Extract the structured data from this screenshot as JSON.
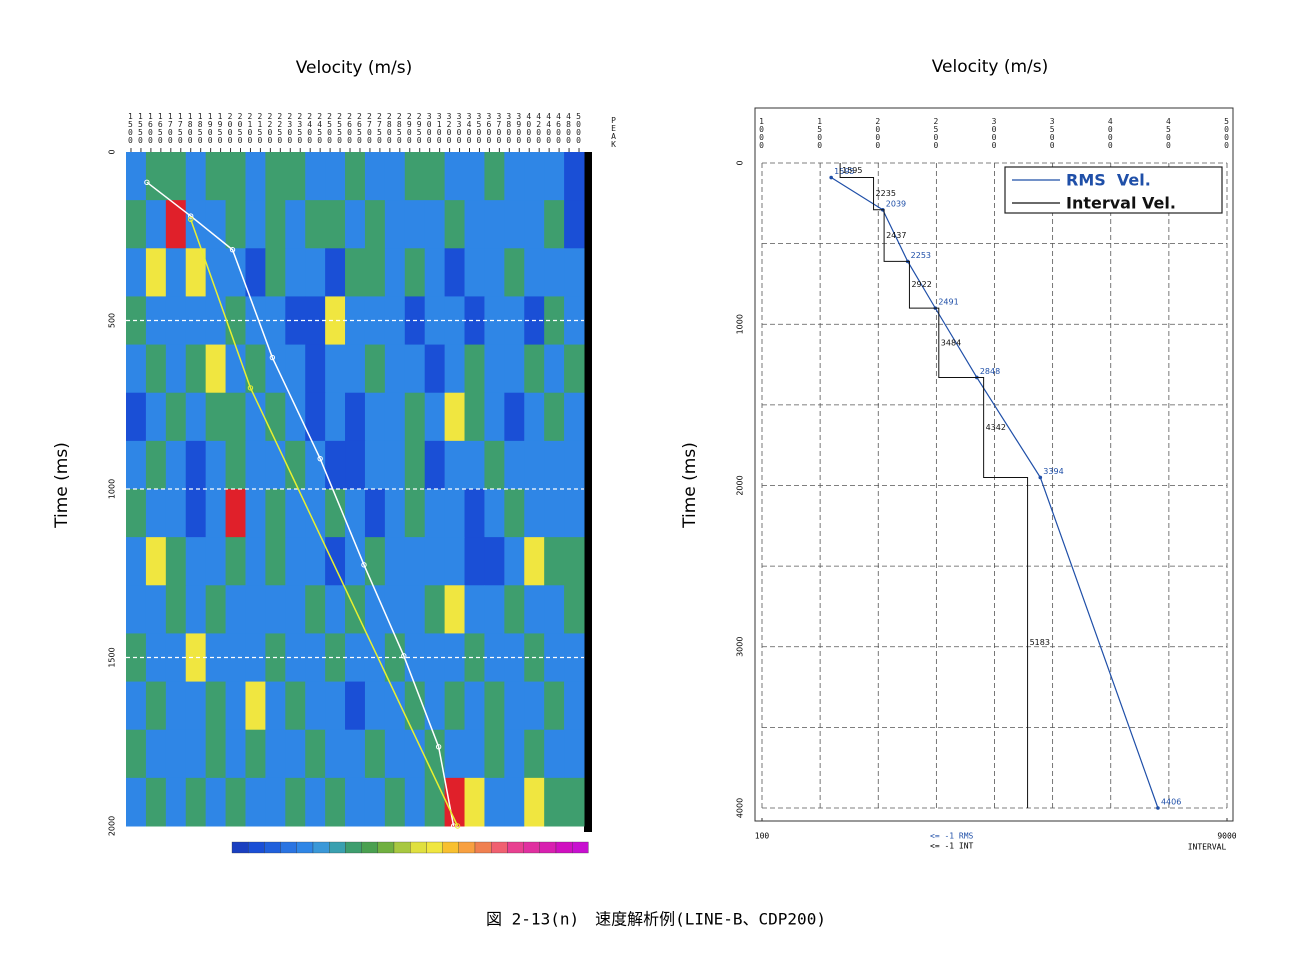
{
  "chart_data": [
    {
      "type": "heatmap",
      "title": "Velocity (m/s)",
      "ylabel": "Time (ms)",
      "peak_label": "PEAK",
      "xlim": [
        1500,
        5000
      ],
      "xticks": [
        1500,
        1550,
        1600,
        1650,
        1700,
        1750,
        1800,
        1850,
        1900,
        1950,
        2000,
        2050,
        2100,
        2150,
        2200,
        2250,
        2300,
        2350,
        2400,
        2450,
        2500,
        2550,
        2600,
        2650,
        2700,
        2750,
        2800,
        2850,
        2900,
        2950,
        3000,
        3100,
        3200,
        3300,
        3400,
        3500,
        3600,
        3700,
        3800,
        3900,
        4000,
        4200,
        4400,
        4600,
        4800,
        5000
      ],
      "ylim": [
        0,
        2000
      ],
      "yticks": [
        0,
        500,
        1000,
        1500,
        2000
      ],
      "grid": true,
      "colors": [
        "#1a4fd6",
        "#2f86e6",
        "#3e9e6e",
        "#f0e640",
        "#e0202a"
      ],
      "values": [
        [
          1,
          2,
          2,
          1,
          2,
          2,
          1,
          2,
          2,
          1,
          1,
          2,
          1,
          1,
          2,
          2,
          1,
          1,
          2,
          1,
          1,
          1,
          0
        ],
        [
          2,
          1,
          4,
          1,
          1,
          2,
          1,
          2,
          1,
          2,
          2,
          1,
          2,
          1,
          1,
          1,
          2,
          1,
          1,
          1,
          1,
          2,
          0
        ],
        [
          1,
          3,
          1,
          3,
          1,
          1,
          0,
          2,
          1,
          1,
          0,
          2,
          2,
          1,
          2,
          1,
          0,
          1,
          1,
          2,
          1,
          1,
          1
        ],
        [
          2,
          1,
          1,
          1,
          1,
          2,
          1,
          1,
          0,
          0,
          3,
          1,
          1,
          1,
          0,
          1,
          1,
          0,
          1,
          1,
          0,
          2,
          1
        ],
        [
          1,
          2,
          1,
          2,
          3,
          1,
          2,
          1,
          1,
          0,
          1,
          1,
          2,
          1,
          1,
          0,
          1,
          2,
          1,
          1,
          2,
          1,
          2
        ],
        [
          0,
          1,
          2,
          1,
          2,
          2,
          1,
          2,
          1,
          0,
          1,
          0,
          1,
          1,
          2,
          1,
          3,
          2,
          1,
          0,
          1,
          2,
          1
        ],
        [
          1,
          2,
          1,
          0,
          1,
          2,
          1,
          1,
          2,
          1,
          0,
          0,
          1,
          1,
          2,
          0,
          1,
          1,
          2,
          1,
          1,
          1,
          1
        ],
        [
          2,
          1,
          1,
          0,
          1,
          4,
          1,
          2,
          1,
          1,
          2,
          1,
          0,
          1,
          2,
          1,
          1,
          0,
          1,
          2,
          1,
          1,
          1
        ],
        [
          1,
          3,
          2,
          1,
          1,
          2,
          1,
          2,
          1,
          1,
          0,
          1,
          2,
          1,
          1,
          1,
          1,
          0,
          0,
          1,
          3,
          2,
          2
        ],
        [
          1,
          1,
          2,
          1,
          2,
          1,
          1,
          1,
          1,
          2,
          1,
          2,
          1,
          1,
          1,
          2,
          3,
          1,
          1,
          2,
          1,
          1,
          2
        ],
        [
          2,
          1,
          1,
          3,
          1,
          1,
          1,
          2,
          1,
          1,
          2,
          1,
          1,
          2,
          1,
          1,
          1,
          2,
          1,
          1,
          2,
          1,
          1
        ],
        [
          1,
          2,
          1,
          1,
          2,
          1,
          3,
          1,
          2,
          1,
          1,
          0,
          1,
          1,
          2,
          1,
          2,
          1,
          2,
          1,
          1,
          2,
          1
        ],
        [
          2,
          1,
          1,
          1,
          2,
          1,
          2,
          1,
          1,
          2,
          1,
          1,
          2,
          1,
          1,
          2,
          1,
          1,
          2,
          1,
          2,
          1,
          1
        ],
        [
          1,
          2,
          1,
          2,
          1,
          2,
          1,
          1,
          2,
          1,
          2,
          1,
          1,
          2,
          1,
          2,
          4,
          3,
          1,
          1,
          3,
          2,
          2
        ]
      ],
      "series": [
        {
          "color": "#ffffff",
          "x": [
            1580,
            1800,
            2010,
            2210,
            2450,
            2670,
            2870,
            3090,
            3240
          ],
          "y": [
            90,
            190,
            290,
            610,
            910,
            1225,
            1495,
            1765,
            2000
          ]
        },
        {
          "color": "#e8f030",
          "x": [
            1800,
            2100,
            3280
          ],
          "y": [
            200,
            700,
            2000
          ]
        }
      ]
    },
    {
      "type": "line",
      "title": "Velocity (m/s)",
      "ylabel": "Time (ms)",
      "xlim": [
        1000,
        5000
      ],
      "xticks": [
        1000,
        1500,
        2000,
        2500,
        3000,
        3500,
        4000,
        4500,
        5000
      ],
      "ylim": [
        0,
        4000
      ],
      "yticks": [
        0,
        1000,
        2000,
        3000,
        4000
      ],
      "ygrid": [
        500,
        1500,
        2500,
        3500
      ],
      "grid": true,
      "x2lim": [
        100,
        9000
      ],
      "x2ticks": [
        100,
        9000
      ],
      "x2label": "INTERVAL",
      "legend": "upper right",
      "footnotes": [
        "<=  -1 RMS",
        "<=  -1 INT"
      ],
      "series": [
        {
          "name": "RMS  Vel.",
          "color": "#1f4fa8",
          "x": [
            1595,
            2039,
            2253,
            2491,
            2848,
            3394,
            4406
          ],
          "y": [
            90,
            290,
            610,
            900,
            1330,
            1950,
            4000
          ]
        },
        {
          "name": "Interval Vel.",
          "color": "#111111",
          "axis": "x2",
          "x": [
            1595,
            2235,
            2437,
            2922,
            3484,
            4342,
            5183
          ],
          "y": [
            90,
            290,
            610,
            900,
            1330,
            1950,
            4000
          ]
        }
      ]
    },
    {
      "caption": "図 2-13(n)　速度解析例(LINE-B、CDP200)"
    }
  ]
}
